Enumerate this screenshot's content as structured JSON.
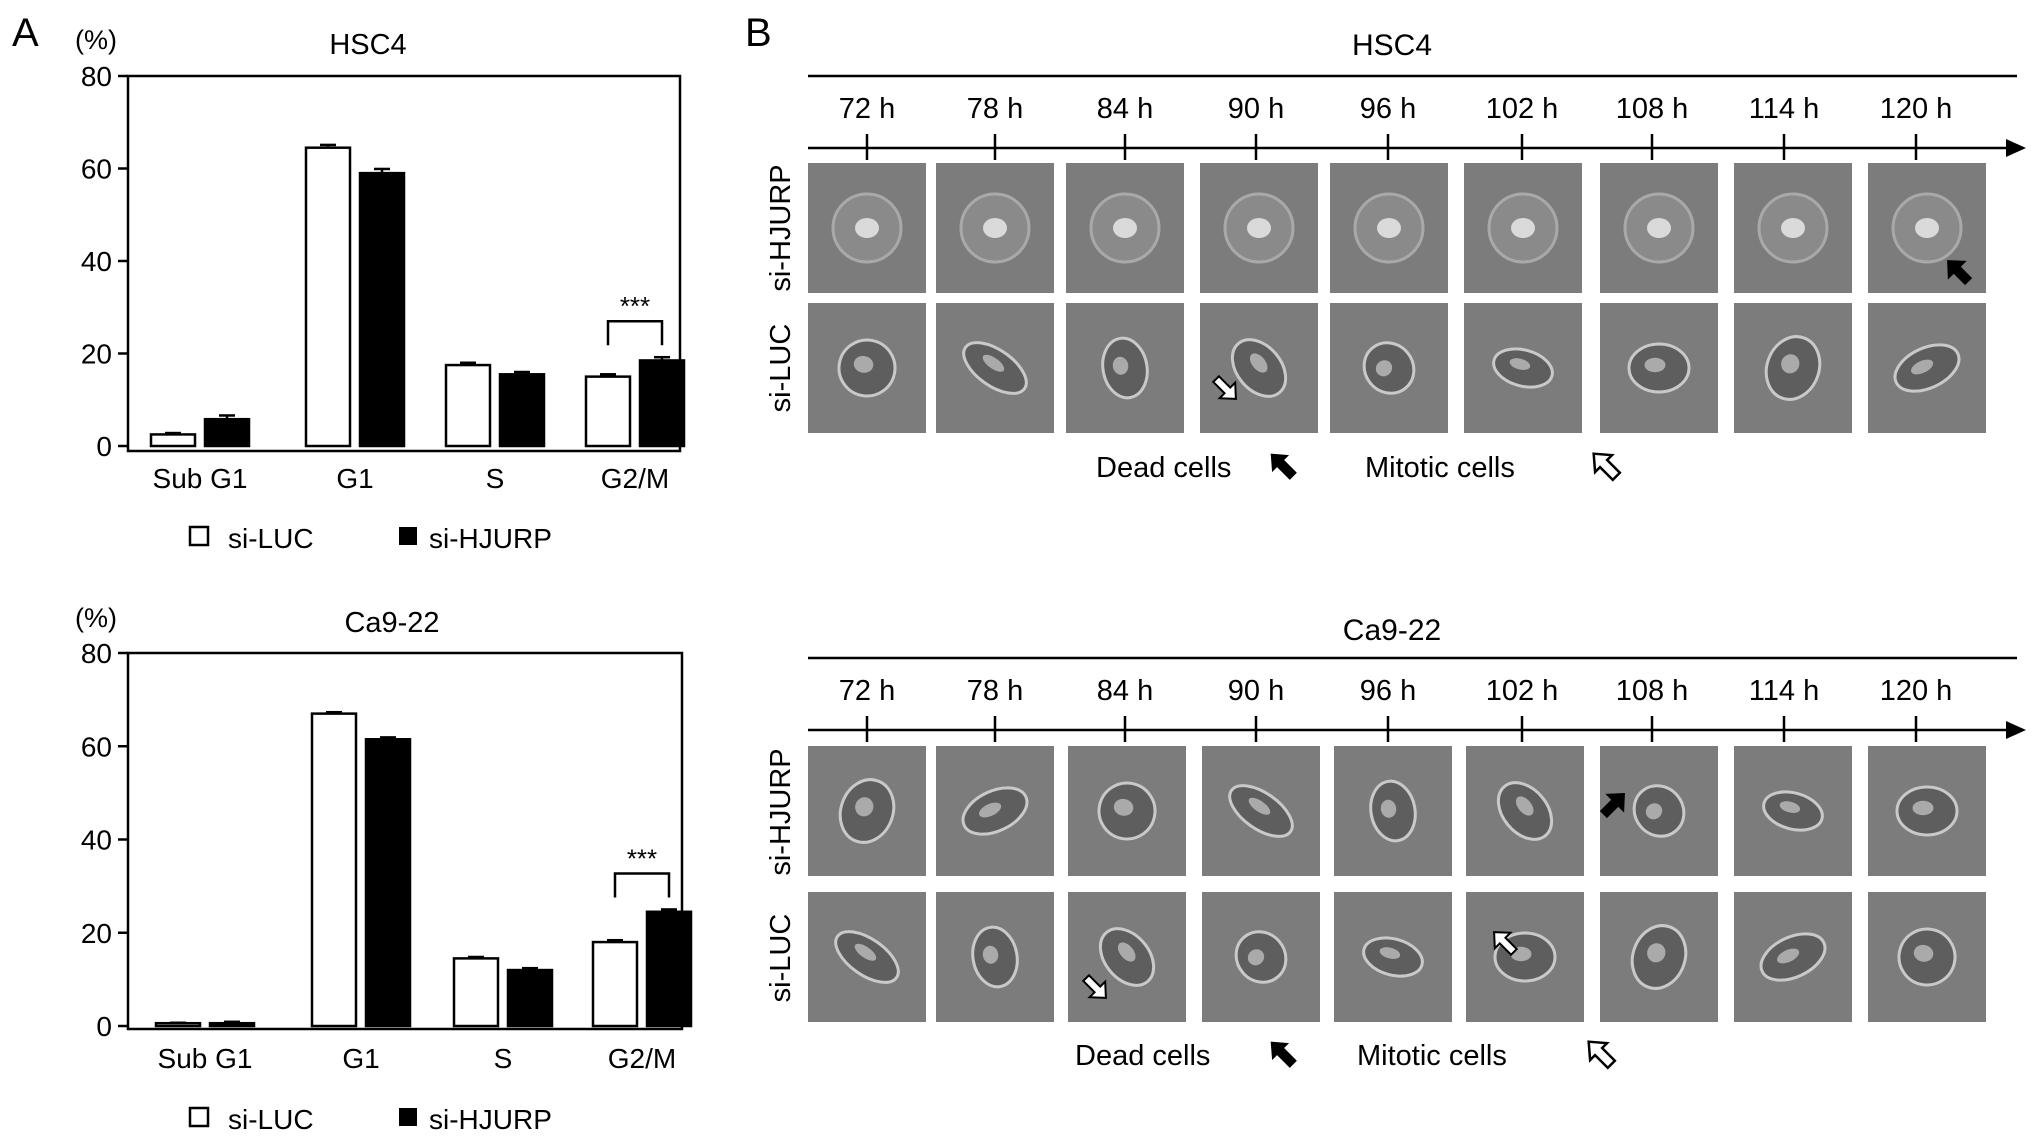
{
  "panel_labels": {
    "a": "A",
    "b": "B"
  },
  "legend": {
    "series1": "si-LUC",
    "series2": "si-HJURP"
  },
  "chart_data": [
    {
      "type": "bar",
      "title": "HSC4",
      "ylabel": "(%)",
      "ylim": [
        0,
        80
      ],
      "yticks": [
        0,
        20,
        40,
        60,
        80
      ],
      "categories": [
        "Sub G1",
        "G1",
        "S",
        "G2/M"
      ],
      "series": [
        {
          "name": "si-LUC",
          "values": [
            2.5,
            64.5,
            17.5,
            15.0
          ],
          "errors": [
            0.3,
            0.6,
            0.5,
            0.5
          ]
        },
        {
          "name": "si-HJURP",
          "values": [
            5.8,
            59.0,
            15.5,
            18.5
          ],
          "errors": [
            0.8,
            0.9,
            0.5,
            0.7
          ]
        }
      ],
      "annotations": [
        {
          "category": "G2/M",
          "text": "***"
        }
      ],
      "legend_position": "bottom"
    },
    {
      "type": "bar",
      "title": "Ca9-22",
      "ylabel": "(%)",
      "ylim": [
        0,
        80
      ],
      "yticks": [
        0,
        20,
        40,
        60,
        80
      ],
      "categories": [
        "Sub G1",
        "G1",
        "S",
        "G2/M"
      ],
      "series": [
        {
          "name": "si-LUC",
          "values": [
            0.6,
            67.0,
            14.5,
            18.0
          ],
          "errors": [
            0.1,
            0.3,
            0.3,
            0.4
          ]
        },
        {
          "name": "si-HJURP",
          "values": [
            0.6,
            61.5,
            12.0,
            24.5
          ],
          "errors": [
            0.3,
            0.4,
            0.4,
            0.5
          ]
        }
      ],
      "annotations": [
        {
          "category": "G2/M",
          "text": "***"
        }
      ],
      "legend_position": "bottom"
    }
  ],
  "panel_b": [
    {
      "title": "HSC4",
      "timepoints": [
        "72 h",
        "78 h",
        "84 h",
        "90 h",
        "96 h",
        "102 h",
        "108 h",
        "114 h",
        "120 h"
      ],
      "rows": [
        "si-HJURP",
        "si-LUC"
      ],
      "legend_dead": "Dead cells",
      "legend_mitotic": "Mitotic cells"
    },
    {
      "title": "Ca9-22",
      "timepoints": [
        "72 h",
        "78 h",
        "84 h",
        "90 h",
        "96 h",
        "102 h",
        "108 h",
        "114 h",
        "120 h"
      ],
      "rows": [
        "si-HJURP",
        "si-LUC"
      ],
      "legend_dead": "Dead cells",
      "legend_mitotic": "Mitotic cells"
    }
  ]
}
